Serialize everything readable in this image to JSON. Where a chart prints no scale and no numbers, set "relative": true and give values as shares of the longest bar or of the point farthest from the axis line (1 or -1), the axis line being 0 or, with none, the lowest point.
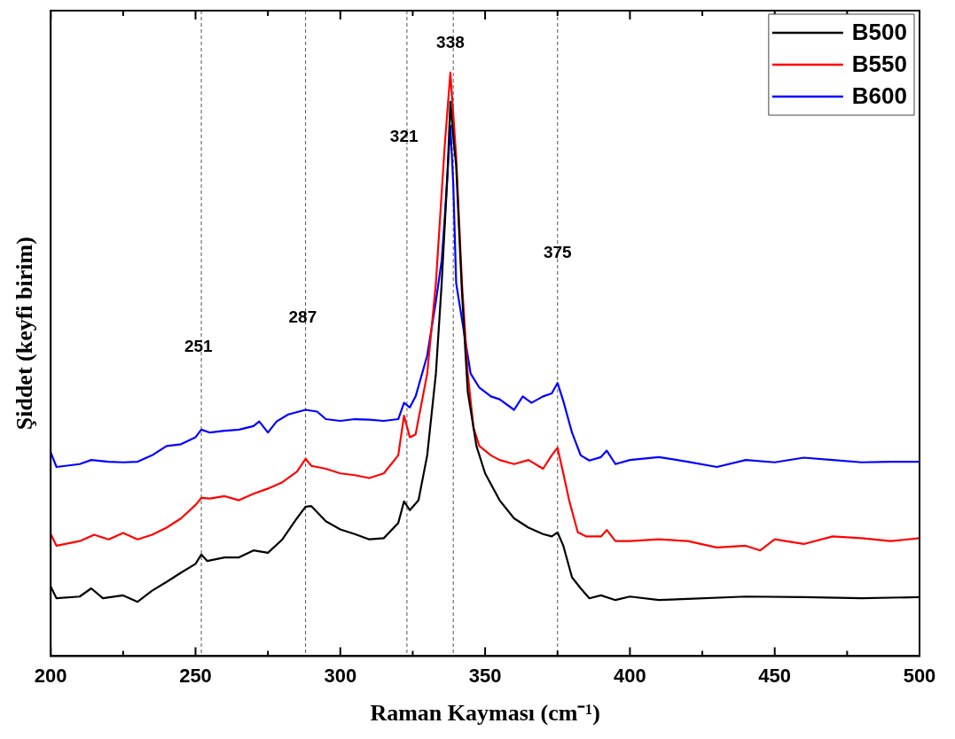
{
  "chart_data": {
    "type": "line",
    "relative": true,
    "xlabel": "Raman Kayması (cm⁻¹)",
    "ylabel": "Şiddet (keyfi birim)",
    "xlim": [
      200,
      500
    ],
    "xticks": [
      200,
      {
        "value": 225,
        "label": null
      },
      250,
      {
        "value": 275,
        "label": null
      },
      300,
      {
        "value": 325,
        "label": null
      },
      350,
      {
        "value": 375,
        "label": null
      },
      400,
      {
        "value": 425,
        "label": null
      },
      450,
      {
        "value": 475,
        "label": null
      },
      500
    ],
    "grid": false,
    "legend": "top right",
    "line_style": "solid",
    "marker": "none",
    "series": [
      {
        "name": "B500",
        "color": "#000000",
        "x": [
          200,
          202,
          210,
          214,
          218,
          225,
          230,
          235,
          240,
          245,
          250,
          252,
          254,
          260,
          265,
          270,
          275,
          280,
          285,
          288,
          290,
          295,
          300,
          305,
          310,
          315,
          320,
          322,
          324,
          327,
          330,
          333,
          335,
          337,
          338,
          339,
          340,
          342,
          344,
          347,
          350,
          355,
          360,
          365,
          370,
          373,
          375,
          377,
          380,
          383,
          386,
          390,
          395,
          400,
          410,
          420,
          440,
          460,
          480,
          500
        ],
        "values": [
          0.119,
          0.099,
          0.102,
          0.116,
          0.099,
          0.104,
          0.093,
          0.112,
          0.127,
          0.143,
          0.158,
          0.174,
          0.163,
          0.169,
          0.169,
          0.181,
          0.177,
          0.2,
          0.236,
          0.256,
          0.257,
          0.231,
          0.217,
          0.209,
          0.2,
          0.202,
          0.228,
          0.265,
          0.25,
          0.267,
          0.344,
          0.484,
          0.639,
          0.825,
          0.95,
          0.89,
          0.84,
          0.623,
          0.453,
          0.36,
          0.313,
          0.267,
          0.236,
          0.22,
          0.209,
          0.205,
          0.212,
          0.189,
          0.135,
          0.116,
          0.099,
          0.104,
          0.096,
          0.102,
          0.096,
          0.098,
          0.102,
          0.101,
          0.099,
          0.101
        ]
      },
      {
        "name": "B550",
        "color": "#ff0000",
        "x": [
          200,
          202,
          210,
          215,
          220,
          225,
          230,
          235,
          240,
          245,
          250,
          252,
          255,
          260,
          265,
          270,
          275,
          280,
          285,
          288,
          290,
          295,
          300,
          305,
          310,
          315,
          320,
          322,
          324,
          326,
          330,
          333,
          336,
          338,
          340,
          342,
          344,
          346,
          348,
          352,
          355,
          360,
          365,
          370,
          373,
          375,
          377,
          379,
          382,
          385,
          390,
          392,
          395,
          400,
          410,
          420,
          430,
          440,
          445,
          450,
          460,
          470,
          480,
          490,
          500
        ],
        "values": [
          0.209,
          0.189,
          0.197,
          0.208,
          0.2,
          0.211,
          0.2,
          0.208,
          0.22,
          0.236,
          0.259,
          0.271,
          0.27,
          0.274,
          0.267,
          0.278,
          0.287,
          0.298,
          0.316,
          0.338,
          0.326,
          0.321,
          0.313,
          0.31,
          0.305,
          0.313,
          0.344,
          0.412,
          0.375,
          0.38,
          0.484,
          0.639,
          0.871,
          1,
          0.856,
          0.639,
          0.484,
          0.391,
          0.36,
          0.344,
          0.336,
          0.329,
          0.336,
          0.321,
          0.344,
          0.357,
          0.313,
          0.267,
          0.212,
          0.205,
          0.205,
          0.216,
          0.197,
          0.197,
          0.2,
          0.197,
          0.186,
          0.189,
          0.181,
          0.2,
          0.192,
          0.205,
          0.202,
          0.197,
          0.202
        ]
      },
      {
        "name": "B600",
        "color": "#0000ff",
        "x": [
          200,
          202,
          210,
          214,
          220,
          225,
          230,
          235,
          240,
          245,
          250,
          252,
          255,
          260,
          265,
          270,
          272,
          275,
          278,
          282,
          288,
          292,
          295,
          300,
          305,
          310,
          315,
          320,
          322,
          324,
          326,
          330,
          333,
          335,
          336,
          338,
          339,
          340,
          342,
          345,
          348,
          352,
          355,
          360,
          363,
          366,
          370,
          373,
          375,
          377,
          380,
          383,
          386,
          390,
          392,
          395,
          400,
          410,
          420,
          430,
          440,
          450,
          460,
          470,
          480,
          490,
          500
        ],
        "values": [
          0.349,
          0.324,
          0.329,
          0.336,
          0.333,
          0.332,
          0.333,
          0.344,
          0.36,
          0.363,
          0.375,
          0.388,
          0.383,
          0.386,
          0.388,
          0.394,
          0.402,
          0.383,
          0.402,
          0.414,
          0.422,
          0.419,
          0.406,
          0.403,
          0.406,
          0.405,
          0.403,
          0.406,
          0.434,
          0.426,
          0.445,
          0.515,
          0.608,
          0.678,
          0.747,
          0.909,
          0.809,
          0.639,
          0.577,
          0.484,
          0.46,
          0.445,
          0.44,
          0.422,
          0.445,
          0.434,
          0.445,
          0.45,
          0.468,
          0.437,
          0.383,
          0.344,
          0.335,
          0.341,
          0.352,
          0.329,
          0.336,
          0.341,
          0.333,
          0.324,
          0.336,
          0.332,
          0.34,
          0.336,
          0.332,
          0.333,
          0.333
        ]
      }
    ],
    "ref_lines": [
      {
        "axis": "x",
        "value": 252,
        "color": "#555555",
        "line_style": "dashed"
      },
      {
        "axis": "x",
        "value": 288,
        "color": "#555555",
        "line_style": "dashed"
      },
      {
        "axis": "x",
        "value": 323,
        "color": "#555555",
        "line_style": "dashed"
      },
      {
        "axis": "x",
        "value": 339,
        "color": "#555555",
        "line_style": "dashed"
      },
      {
        "axis": "x",
        "value": 375,
        "color": "#555555",
        "line_style": "dashed"
      }
    ],
    "annotations": [
      {
        "text": "251",
        "x": 251,
        "y": 0.53
      },
      {
        "text": "287",
        "x": 287,
        "y": 0.58
      },
      {
        "text": "321",
        "x": 322,
        "y": 0.89
      },
      {
        "text": "338",
        "x": 338,
        "y": 1.05
      },
      {
        "text": "375",
        "x": 375,
        "y": 0.69
      }
    ]
  }
}
